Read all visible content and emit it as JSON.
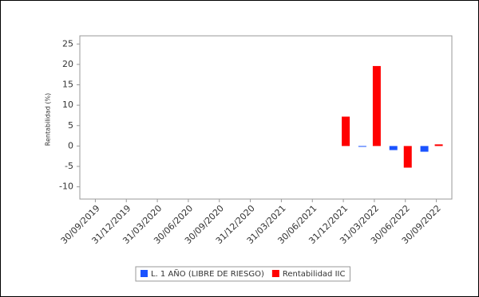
{
  "chart_data": {
    "type": "bar",
    "y_label": "Rentabilidad (%)",
    "categories": [
      "30/09/2019",
      "31/12/2019",
      "31/03/2020",
      "30/06/2020",
      "30/09/2020",
      "31/12/2020",
      "31/03/2021",
      "30/06/2021",
      "31/12/2021",
      "31/03/2022",
      "30/06/2022",
      "30/09/2022"
    ],
    "series": [
      {
        "name": "L. 1 AÑO (LIBRE DE RIESGO)",
        "color": "#1a53ff",
        "values": [
          null,
          null,
          null,
          null,
          null,
          null,
          null,
          null,
          null,
          -0.1,
          -1,
          -1.4
        ]
      },
      {
        "name": "Rentabilidad IIC",
        "color": "#ff0000",
        "values": [
          null,
          null,
          null,
          null,
          null,
          null,
          null,
          null,
          7.2,
          19.6,
          -5.3,
          0.4
        ]
      }
    ],
    "ylim": [
      -13,
      27
    ],
    "yticks": [
      -10,
      -5,
      0,
      5,
      10,
      15,
      20,
      25
    ],
    "grid": false
  }
}
